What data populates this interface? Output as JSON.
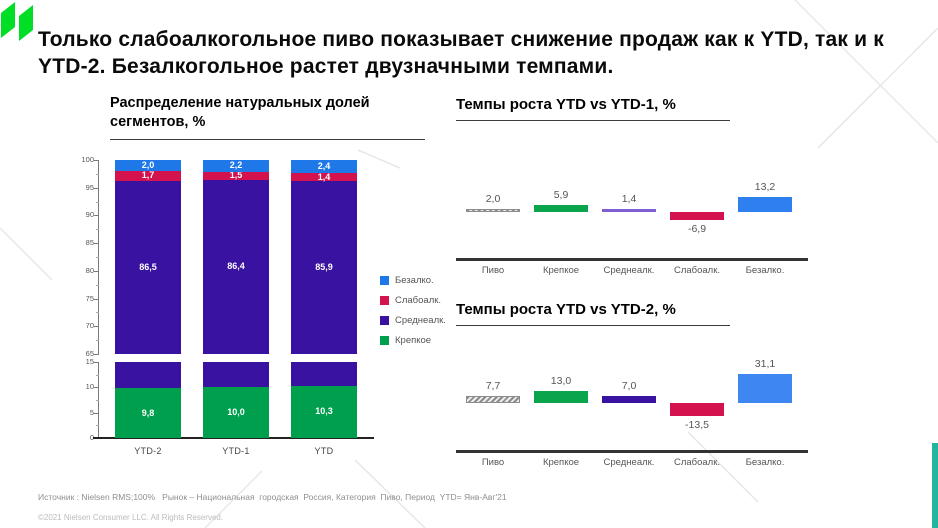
{
  "slide": {
    "title": "Только слабоалкогольное пиво показывает снижение продаж как к YTD, так и к YTD-2. Безалкогольное растет двузначными темпами.",
    "source": "Источник : Nielsen RMS;100%   Рынок – Национальная  городская  Россия, Категория  Пиво, Период  YTD= Янв-Авг'21",
    "copyright": "©2021 Nielsen Consumer LLC. All Rights Reserved."
  },
  "colors": {
    "logo_green": "#00DF26",
    "accent_strip": "#23B39E",
    "green": "#009F4D",
    "purple": "#3A12A2",
    "light_purple": "#7D5FD3",
    "red": "#D4124E",
    "blue": "#1E78E8"
  },
  "chart_data": [
    {
      "type": "bar",
      "variant": "stacked_broken_axis",
      "title": "Распределение натуральных долей сегментов, %",
      "categories": [
        "YTD-2",
        "YTD-1",
        "YTD"
      ],
      "series": [
        {
          "name": "Крепкое",
          "color": "#009F4D",
          "values": [
            9.8,
            10.0,
            10.3
          ],
          "labels": [
            "9,8",
            "10,0",
            "10,3"
          ]
        },
        {
          "name": "Среднеалк.",
          "color": "#3A12A2",
          "values": [
            86.5,
            86.4,
            85.9
          ],
          "labels": [
            "86,5",
            "86,4",
            "85,9"
          ]
        },
        {
          "name": "Слабоалк.",
          "color": "#D4124E",
          "values": [
            1.7,
            1.5,
            1.4
          ],
          "labels": [
            "1,7",
            "1,5",
            "1,4"
          ]
        },
        {
          "name": "Безалко.",
          "color": "#1E78E8",
          "values": [
            2.0,
            2.2,
            2.4
          ],
          "labels": [
            "2,0",
            "2,2",
            "2,4"
          ]
        }
      ],
      "upper_axis": {
        "min": 65,
        "max": 100,
        "ticks": [
          100,
          95,
          90,
          85,
          80,
          75,
          70,
          65
        ]
      },
      "lower_axis": {
        "min": 0,
        "max": 15,
        "ticks": [
          15,
          10,
          5,
          0
        ]
      },
      "legend": [
        {
          "label": "Безалко.",
          "color": "#1E78E8"
        },
        {
          "label": "Слабоалк.",
          "color": "#D4124E"
        },
        {
          "label": "Среднеалк.",
          "color": "#3A12A2"
        },
        {
          "label": "Крепкое",
          "color": "#009F4D"
        }
      ]
    },
    {
      "type": "bar",
      "variant": "growth",
      "title": "Темпы роста YTD vs YTD-1, %",
      "categories": [
        "Пиво",
        "Крепкое",
        "Среднеалк.",
        "Слабоалк.",
        "Безалко."
      ],
      "values": [
        2.0,
        5.9,
        1.4,
        -6.9,
        13.2
      ],
      "labels": [
        "2,0",
        "5,9",
        "1,4",
        "-6,9",
        "13,2"
      ],
      "bar_colors": [
        "hatched",
        "#0AA44D",
        "#7D5FD3",
        "#D4124E",
        "#2E7FF0"
      ]
    },
    {
      "type": "bar",
      "variant": "growth",
      "title": "Темпы роста YTD vs YTD-2, %",
      "categories": [
        "Пиво",
        "Крепкое",
        "Среднеалк.",
        "Слабоалк.",
        "Безалко."
      ],
      "values": [
        7.7,
        13.0,
        7.0,
        -13.5,
        31.1
      ],
      "labels": [
        "7,7",
        "13,0",
        "7,0",
        "-13,5",
        "31,1"
      ],
      "bar_colors": [
        "hatched",
        "#0AA44D",
        "#3A12A2",
        "#D4124E",
        "#3E87F2"
      ]
    }
  ]
}
